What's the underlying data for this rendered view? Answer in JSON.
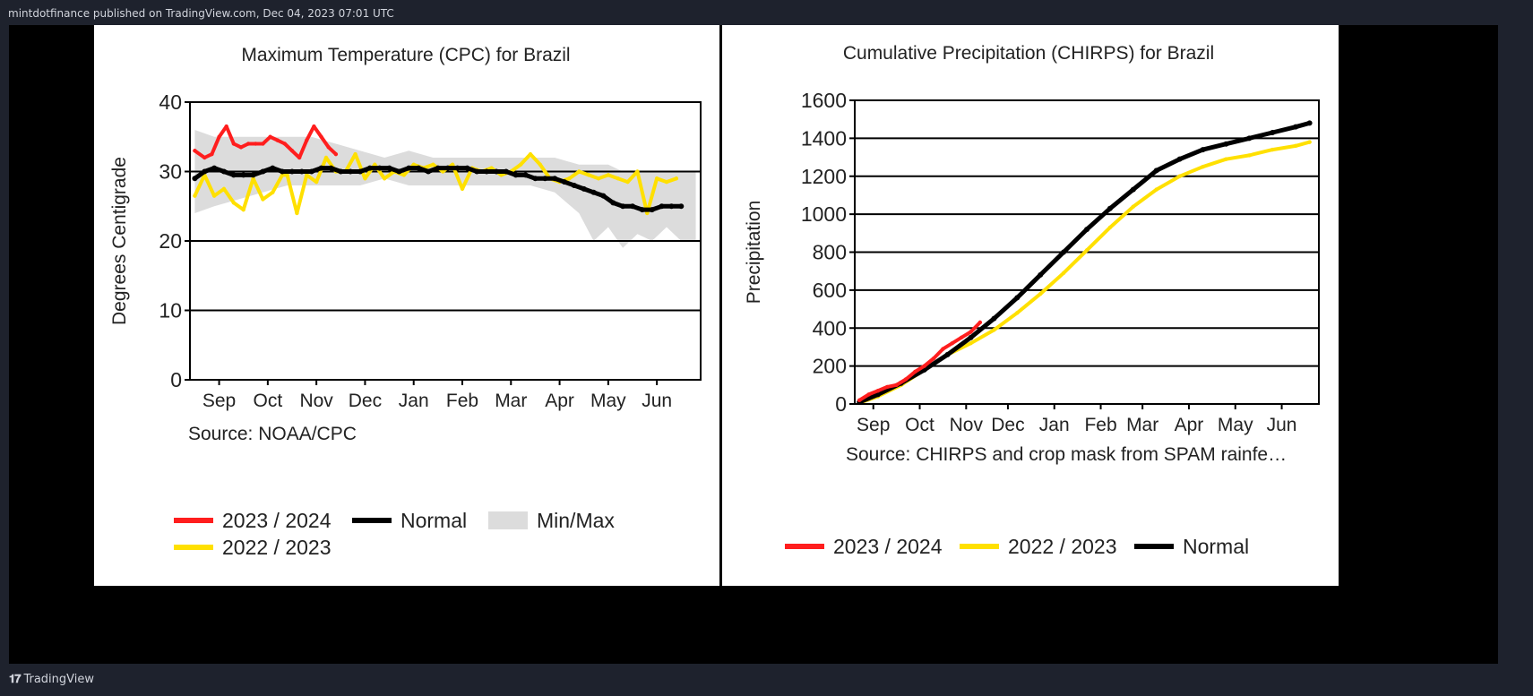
{
  "header": {
    "published": "mintdotfinance published on TradingView.com, Dec 04, 2023 07:01 UTC"
  },
  "footer": {
    "brand": "TradingView",
    "logo_icon": "tradingview-logo-icon"
  },
  "colors": {
    "red": "#ff1e1e",
    "yellow": "#ffe000",
    "black": "#000000",
    "band": "#dcdcdc"
  },
  "chart_data": [
    {
      "type": "line",
      "title": "Maximum Temperature (CPC) for Brazil",
      "ylabel": "Degrees Centigrade",
      "xlabel": "",
      "source": "Source: NOAA/CPC",
      "ylim": [
        0,
        40
      ],
      "yticks": [
        0,
        10,
        20,
        30,
        40
      ],
      "xlim": [
        0,
        10.5
      ],
      "xticks": [
        {
          "label": "Sep",
          "x": 0.6
        },
        {
          "label": "Oct",
          "x": 1.6
        },
        {
          "label": "Nov",
          "x": 2.6
        },
        {
          "label": "Dec",
          "x": 3.6
        },
        {
          "label": "Jan",
          "x": 4.6
        },
        {
          "label": "Feb",
          "x": 5.6
        },
        {
          "label": "Mar",
          "x": 6.6
        },
        {
          "label": "Apr",
          "x": 7.6
        },
        {
          "label": "May",
          "x": 8.6
        },
        {
          "label": "Jun",
          "x": 9.6
        }
      ],
      "grid": "horizontal",
      "legend": [
        {
          "name": "2023 / 2024",
          "color": "#ff1e1e",
          "kind": "line"
        },
        {
          "name": "Normal",
          "color": "#000000",
          "kind": "line"
        },
        {
          "name": "Min/Max",
          "color": "#dcdcdc",
          "kind": "band"
        },
        {
          "name": "2022 / 2023",
          "color": "#ffe000",
          "kind": "line"
        }
      ],
      "band": {
        "x": [
          0.1,
          0.5,
          1.0,
          1.5,
          2.0,
          2.5,
          3.0,
          3.5,
          4.0,
          4.5,
          5.0,
          5.5,
          6.0,
          6.5,
          7.0,
          7.5,
          8.0,
          8.3,
          8.6,
          8.9,
          9.2,
          9.5,
          9.8,
          10.1,
          10.4
        ],
        "upper": [
          36,
          35,
          35,
          35,
          35,
          35,
          34,
          33,
          32,
          33,
          32,
          32,
          32,
          32,
          32,
          32,
          31,
          31,
          31,
          30,
          30,
          30,
          30,
          30,
          30
        ],
        "lower": [
          24,
          25,
          26,
          27,
          28,
          28,
          28,
          28,
          29,
          28,
          28,
          28,
          28,
          28,
          28,
          27,
          24,
          20,
          22,
          19,
          21,
          20,
          22,
          20,
          20
        ]
      },
      "series": [
        {
          "name": "2022 / 2023",
          "color": "#ffe000",
          "x": [
            0.1,
            0.3,
            0.5,
            0.7,
            0.9,
            1.1,
            1.3,
            1.5,
            1.7,
            1.9,
            2.0,
            2.2,
            2.4,
            2.6,
            2.8,
            3.0,
            3.2,
            3.4,
            3.6,
            3.8,
            4.0,
            4.2,
            4.4,
            4.6,
            4.8,
            5.0,
            5.2,
            5.4,
            5.6,
            5.8,
            6.0,
            6.2,
            6.4,
            6.6,
            6.8,
            7.0,
            7.2,
            7.4,
            7.6,
            7.8,
            8.0,
            8.2,
            8.4,
            8.6,
            8.8,
            9.0,
            9.2,
            9.4,
            9.6,
            9.8,
            10.0
          ],
          "y": [
            26.5,
            29.5,
            26.5,
            27.5,
            25.5,
            24.5,
            29,
            26,
            27,
            29.5,
            29.5,
            24,
            29.5,
            28.5,
            32,
            30,
            30,
            32.5,
            29,
            31,
            29,
            30,
            29.5,
            31,
            30.5,
            31,
            30,
            31,
            27.5,
            30.5,
            30,
            30.5,
            29.5,
            30,
            31,
            32.5,
            31,
            29,
            28.5,
            29,
            30,
            29.5,
            29,
            29.5,
            29,
            28.5,
            30,
            24,
            29,
            28.5,
            29
          ]
        },
        {
          "name": "Normal",
          "color": "#000000",
          "x": [
            0.1,
            0.3,
            0.5,
            0.7,
            0.9,
            1.1,
            1.3,
            1.5,
            1.7,
            1.9,
            2.1,
            2.3,
            2.5,
            2.7,
            2.9,
            3.1,
            3.3,
            3.5,
            3.7,
            3.9,
            4.1,
            4.3,
            4.5,
            4.7,
            4.9,
            5.1,
            5.3,
            5.5,
            5.7,
            5.9,
            6.1,
            6.3,
            6.5,
            6.7,
            6.9,
            7.1,
            7.3,
            7.5,
            7.7,
            7.9,
            8.1,
            8.3,
            8.5,
            8.7,
            8.9,
            9.1,
            9.3,
            9.5,
            9.7,
            9.9,
            10.1
          ],
          "y": [
            29,
            30,
            30.5,
            30,
            29.5,
            29.5,
            29.5,
            30,
            30.5,
            30,
            30,
            30,
            30,
            30.5,
            30.5,
            30,
            30,
            30,
            30.5,
            30.5,
            30.5,
            30,
            30.5,
            30.5,
            30,
            30.5,
            30.5,
            30.5,
            30.5,
            30,
            30,
            30,
            30,
            29.5,
            29.5,
            29,
            29,
            29,
            28.5,
            28,
            27.5,
            27,
            26.5,
            25.5,
            25,
            25,
            24.5,
            24.5,
            25,
            25,
            25
          ]
        },
        {
          "name": "2023 / 2024",
          "color": "#ff1e1e",
          "x": [
            0.1,
            0.3,
            0.45,
            0.6,
            0.75,
            0.9,
            1.05,
            1.2,
            1.35,
            1.5,
            1.65,
            1.8,
            1.95,
            2.1,
            2.25,
            2.4,
            2.55,
            2.7,
            2.85,
            3.0
          ],
          "y": [
            33,
            32,
            32.5,
            35,
            36.5,
            34,
            33.5,
            34,
            34,
            34,
            35,
            34.5,
            34,
            33,
            32,
            34.5,
            36.5,
            35,
            33.5,
            32.5
          ]
        }
      ]
    },
    {
      "type": "line",
      "title": "Cumulative Precipitation (CHIRPS) for Brazil",
      "ylabel": "Precipitation",
      "xlabel": "",
      "source": "Source: CHIRPS and crop mask from SPAM rainfe…",
      "ylim": [
        0,
        1600
      ],
      "yticks": [
        0,
        200,
        400,
        600,
        800,
        1000,
        1200,
        1400,
        1600
      ],
      "xlim": [
        0,
        10
      ],
      "xticks": [
        {
          "label": "Sep",
          "x": 0.4
        },
        {
          "label": "Oct",
          "x": 1.4
        },
        {
          "label": "Nov",
          "x": 2.4
        },
        {
          "label": "Dec",
          "x": 3.3
        },
        {
          "label": "Jan",
          "x": 4.3
        },
        {
          "label": "Feb",
          "x": 5.3
        },
        {
          "label": "Mar",
          "x": 6.2
        },
        {
          "label": "Apr",
          "x": 7.2
        },
        {
          "label": "May",
          "x": 8.2
        },
        {
          "label": "Jun",
          "x": 9.2
        }
      ],
      "grid": "horizontal",
      "legend": [
        {
          "name": "2023 / 2024",
          "color": "#ff1e1e",
          "kind": "line"
        },
        {
          "name": "2022 / 2023",
          "color": "#ffe000",
          "kind": "line"
        },
        {
          "name": "Normal",
          "color": "#000000",
          "kind": "line"
        }
      ],
      "series": [
        {
          "name": "2022 / 2023",
          "color": "#ffe000",
          "x": [
            0.1,
            0.5,
            1.0,
            1.5,
            2.0,
            2.5,
            3.0,
            3.5,
            4.0,
            4.5,
            5.0,
            5.5,
            6.0,
            6.5,
            7.0,
            7.5,
            8.0,
            8.5,
            9.0,
            9.5,
            9.8
          ],
          "y": [
            5,
            40,
            100,
            180,
            260,
            320,
            390,
            480,
            580,
            690,
            810,
            930,
            1040,
            1130,
            1200,
            1250,
            1290,
            1310,
            1340,
            1360,
            1380
          ]
        },
        {
          "name": "Normal",
          "color": "#000000",
          "x": [
            0.1,
            0.5,
            1.0,
            1.5,
            2.0,
            2.5,
            3.0,
            3.5,
            4.0,
            4.5,
            5.0,
            5.5,
            6.0,
            6.5,
            7.0,
            7.5,
            8.0,
            8.5,
            9.0,
            9.5,
            9.8
          ],
          "y": [
            10,
            50,
            110,
            180,
            260,
            350,
            450,
            560,
            680,
            800,
            920,
            1030,
            1130,
            1230,
            1290,
            1340,
            1370,
            1400,
            1430,
            1460,
            1480
          ]
        },
        {
          "name": "2023 / 2024",
          "color": "#ff1e1e",
          "x": [
            0.1,
            0.3,
            0.5,
            0.7,
            0.9,
            1.1,
            1.3,
            1.5,
            1.7,
            1.9,
            2.1,
            2.3,
            2.5,
            2.7
          ],
          "y": [
            20,
            50,
            70,
            90,
            100,
            130,
            170,
            200,
            240,
            290,
            320,
            350,
            380,
            430
          ]
        }
      ]
    }
  ]
}
